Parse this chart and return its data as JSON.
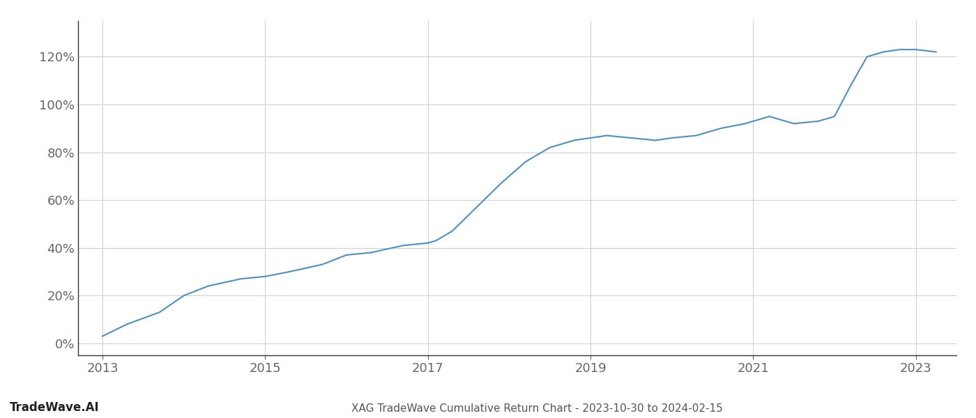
{
  "x_years": [
    2013.0,
    2013.3,
    2013.7,
    2014.0,
    2014.3,
    2014.7,
    2015.0,
    2015.3,
    2015.7,
    2016.0,
    2016.3,
    2016.7,
    2017.0,
    2017.1,
    2017.3,
    2017.6,
    2017.9,
    2018.2,
    2018.5,
    2018.8,
    2019.0,
    2019.2,
    2019.5,
    2019.8,
    2020.0,
    2020.3,
    2020.6,
    2020.9,
    2021.0,
    2021.2,
    2021.5,
    2021.8,
    2022.0,
    2022.2,
    2022.4,
    2022.6,
    2022.8,
    2023.0,
    2023.25
  ],
  "y_values": [
    3,
    8,
    13,
    20,
    24,
    27,
    28,
    30,
    33,
    37,
    38,
    41,
    42,
    43,
    47,
    57,
    67,
    76,
    82,
    85,
    86,
    87,
    86,
    85,
    86,
    87,
    90,
    92,
    93,
    95,
    92,
    93,
    95,
    108,
    120,
    122,
    123,
    123,
    122
  ],
  "line_color": "#4a90c4",
  "line_width": 1.5,
  "background_color": "#ffffff",
  "grid_color": "#cccccc",
  "yticks": [
    0,
    20,
    40,
    60,
    80,
    100,
    120
  ],
  "xticks": [
    2013,
    2015,
    2017,
    2019,
    2021,
    2023
  ],
  "xlim": [
    2012.7,
    2023.5
  ],
  "ylim": [
    -5,
    135
  ],
  "bottom_left_text": "TradeWave.AI",
  "bottom_center_text": "XAG TradeWave Cumulative Return Chart - 2023-10-30 to 2024-02-15",
  "bottom_left_fontsize": 12,
  "bottom_center_fontsize": 11,
  "tick_fontsize": 13,
  "axis_color": "#666666",
  "spine_color": "#333333",
  "left_spine_color": "#333333"
}
